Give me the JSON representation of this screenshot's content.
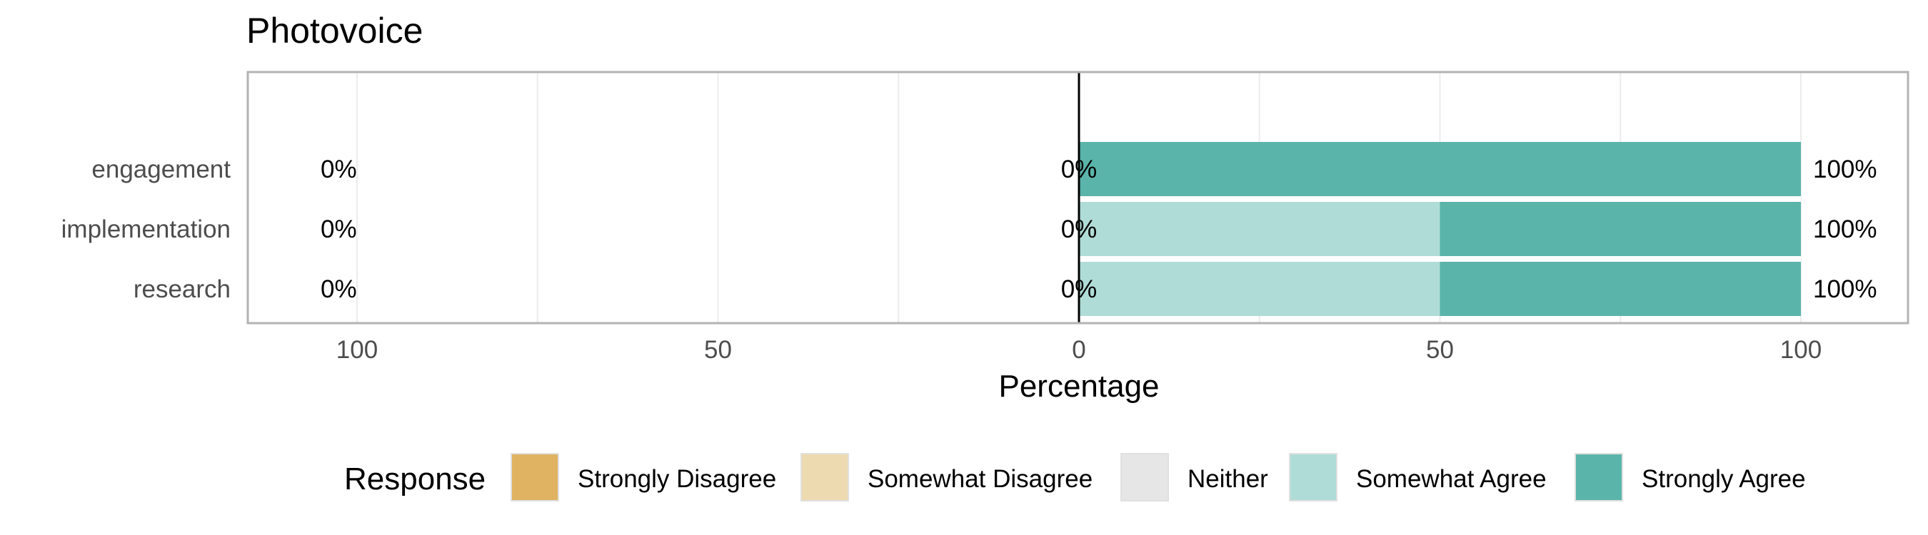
{
  "chart_data": {
    "type": "bar",
    "orientation": "horizontal-diverging",
    "title": "Photovoice",
    "xlabel": "Percentage",
    "ylabel": "",
    "xlim": [
      -115,
      115
    ],
    "x_ticks": [
      {
        "value": -100,
        "label": "100"
      },
      {
        "value": -50,
        "label": "50"
      },
      {
        "value": 0,
        "label": "0"
      },
      {
        "value": 50,
        "label": "50"
      },
      {
        "value": 100,
        "label": "100"
      }
    ],
    "categories": [
      "engagement",
      "implementation",
      "research"
    ],
    "series": [
      {
        "name": "Strongly Disagree",
        "color": "#dfb362",
        "values": [
          0,
          0,
          0
        ]
      },
      {
        "name": "Somewhat Disagree",
        "color": "#eedab0",
        "values": [
          0,
          0,
          0
        ]
      },
      {
        "name": "Neither",
        "color": "#e6e6e6",
        "values": [
          0,
          0,
          0
        ]
      },
      {
        "name": "Somewhat Agree",
        "color": "#b0dcd7",
        "values": [
          0,
          50,
          50
        ]
      },
      {
        "name": "Strongly Agree",
        "color": "#5ab4aa",
        "values": [
          100,
          50,
          50
        ]
      }
    ],
    "data_labels": {
      "left": [
        "0%",
        "0%",
        "0%"
      ],
      "center": [
        "0%",
        "0%",
        "0%"
      ],
      "right": [
        "100%",
        "100%",
        "100%"
      ]
    },
    "grid": true,
    "legend": {
      "title": "Response",
      "position": "bottom"
    }
  }
}
